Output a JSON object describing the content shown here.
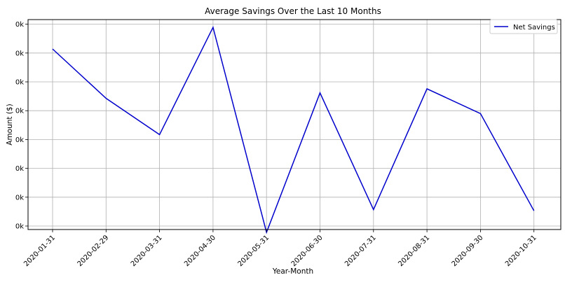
{
  "chart_data": {
    "type": "line",
    "title": "Average Savings Over the Last 10 Months",
    "xlabel": "Year-Month",
    "ylabel": "Amount ($)",
    "categories": [
      "2020-01-31",
      "2020-02-29",
      "2020-03-31",
      "2020-04-30",
      "2020-05-31",
      "2020-06-30",
      "2020-07-31",
      "2020-08-31",
      "2020-09-30",
      "2020-10-31"
    ],
    "y_tick_labels": [
      "0k",
      "0k",
      "0k",
      "0k",
      "0k",
      "0k",
      "0k",
      "0k"
    ],
    "ylim": [
      0,
      7
    ],
    "grid": true,
    "legend_position": "top-right",
    "series": [
      {
        "name": "Net Savings",
        "color": "#0000cc",
        "values": [
          6.14,
          4.43,
          3.17,
          6.89,
          -0.22,
          4.62,
          0.57,
          4.76,
          3.9,
          0.53
        ]
      }
    ]
  }
}
